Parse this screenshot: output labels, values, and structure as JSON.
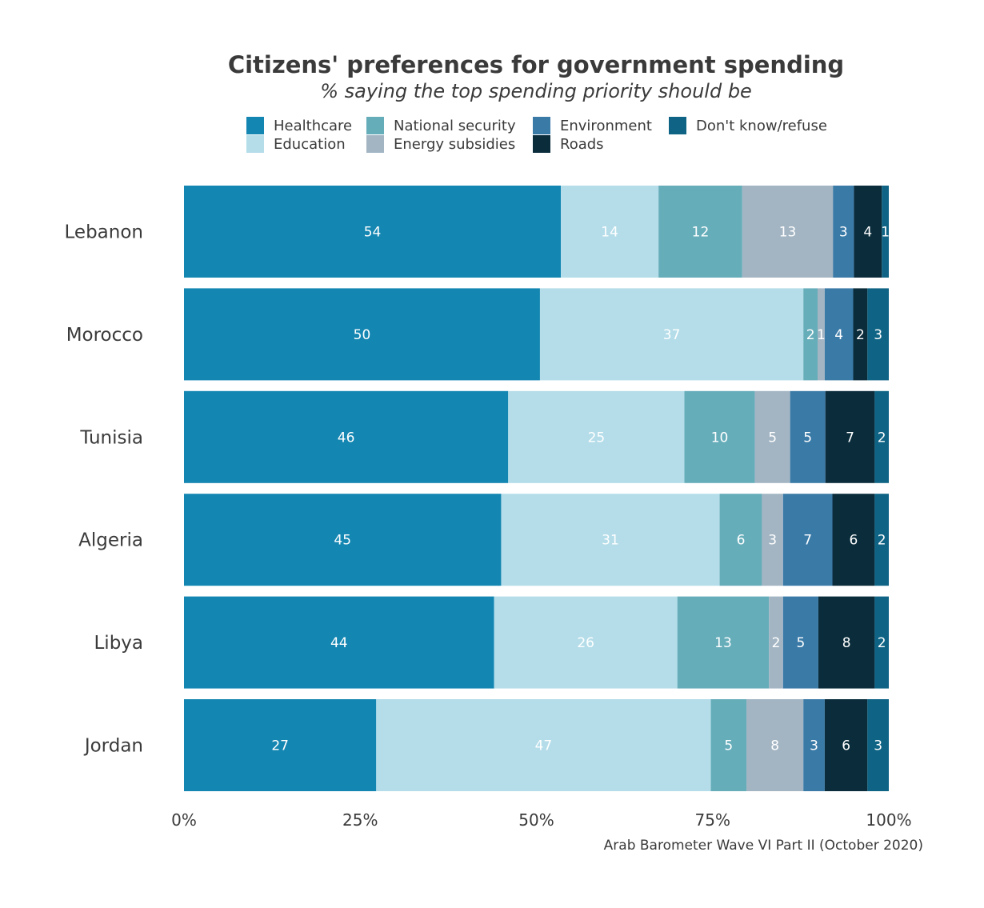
{
  "chart_data": {
    "type": "bar",
    "orientation": "horizontal",
    "stacked": true,
    "title": "Citizens' preferences for government spending",
    "subtitle": "% saying the top spending priority should be",
    "caption": "Arab Barometer Wave VI Part II (October 2020)",
    "categories": [
      "Lebanon",
      "Morocco",
      "Tunisia",
      "Algeria",
      "Libya",
      "Jordan"
    ],
    "xlim": [
      0,
      100
    ],
    "x_ticks": [
      "0%",
      "25%",
      "50%",
      "75%",
      "100%"
    ],
    "legend_position": "top",
    "series": [
      {
        "name": "Healthcare",
        "color": "#1386b2",
        "values": [
          54,
          50,
          46,
          45,
          44,
          27
        ]
      },
      {
        "name": "Education",
        "color": "#b4dde9",
        "values": [
          14,
          37,
          25,
          31,
          26,
          47
        ]
      },
      {
        "name": "National security",
        "color": "#66adba",
        "values": [
          12,
          2,
          10,
          6,
          13,
          5
        ]
      },
      {
        "name": "Energy subsidies",
        "color": "#a3b5c3",
        "values": [
          13,
          1,
          5,
          3,
          2,
          8
        ]
      },
      {
        "name": "Environment",
        "color": "#3a7aa7",
        "values": [
          3,
          4,
          5,
          7,
          5,
          3
        ]
      },
      {
        "name": "Roads",
        "color": "#0a2c3b",
        "values": [
          4,
          2,
          7,
          6,
          8,
          6
        ]
      },
      {
        "name": "Don't know/refuse",
        "color": "#0f6485",
        "values": [
          1,
          3,
          2,
          2,
          2,
          3
        ]
      }
    ]
  }
}
